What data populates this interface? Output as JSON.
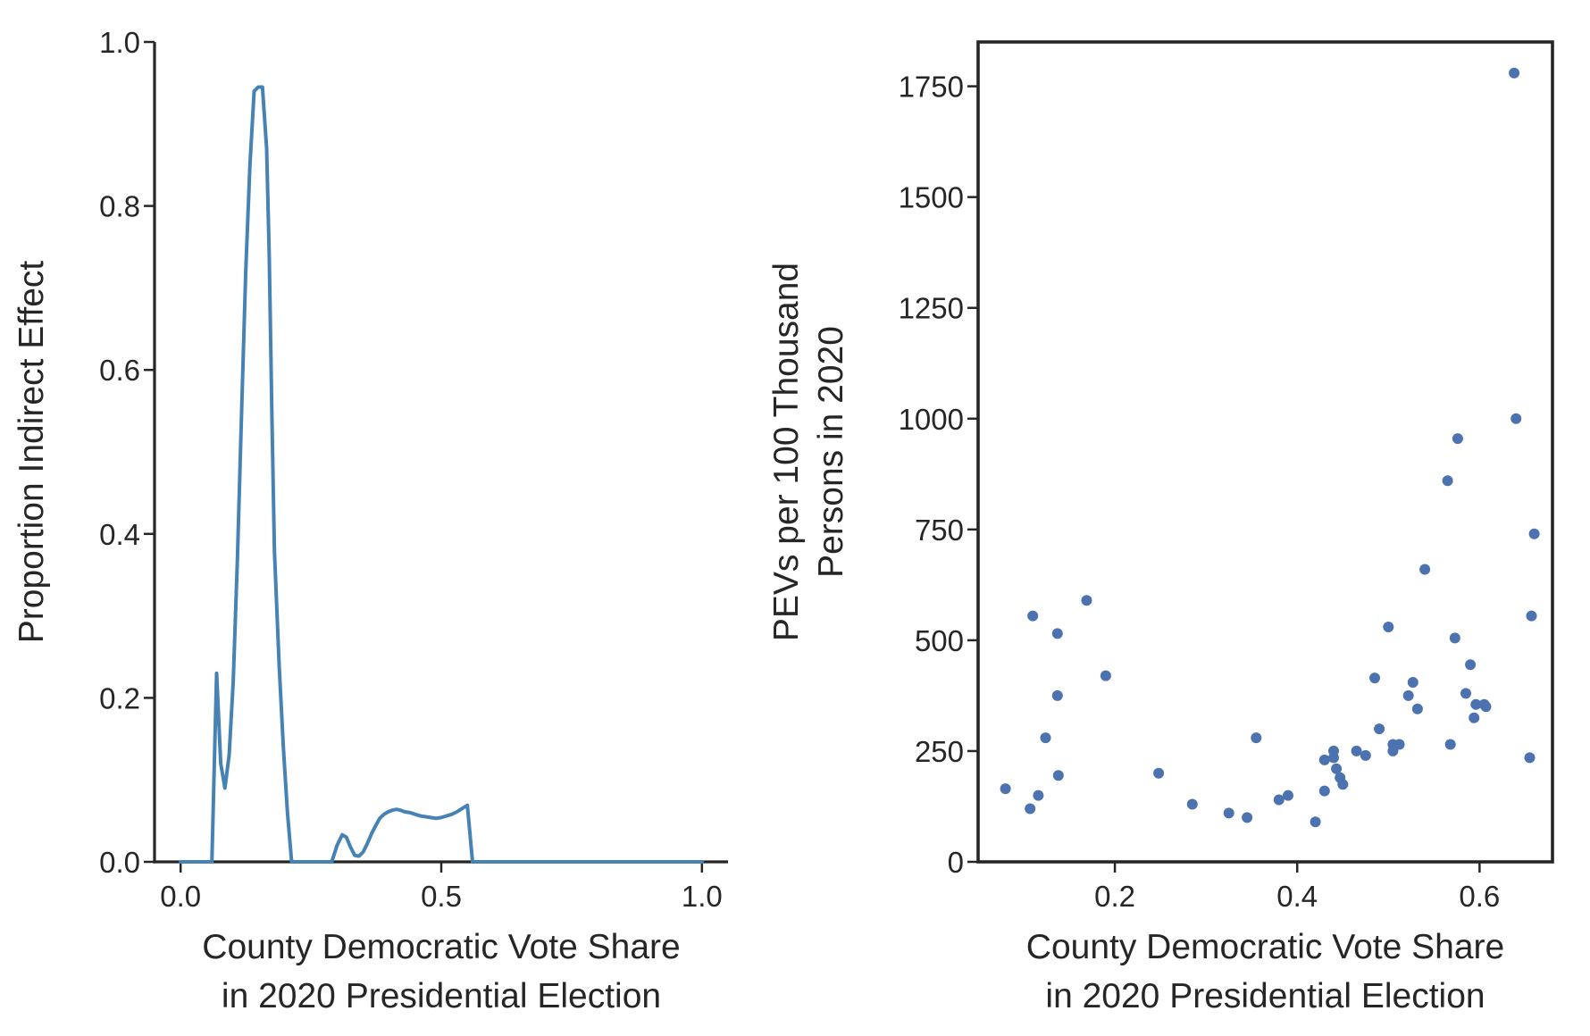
{
  "chart_data": [
    {
      "type": "line",
      "xlabel": [
        "County Democratic Vote Share",
        "in 2020 Presidential Election"
      ],
      "ylabel": "Proportion Indirect Effect",
      "xlim": [
        -0.05,
        1.05
      ],
      "ylim": [
        0.0,
        1.0
      ],
      "xticks": [
        0.0,
        0.5,
        1.0
      ],
      "xtick_labels": [
        "0.0",
        "0.5",
        "1.0"
      ],
      "yticks": [
        0.0,
        0.2,
        0.4,
        0.6,
        0.8,
        1.0
      ],
      "ytick_labels": [
        "0.0",
        "0.2",
        "0.4",
        "0.6",
        "0.8",
        "1.0"
      ],
      "grid": false,
      "spines": "left-bottom",
      "color": "#4682b4",
      "x": [
        0.0,
        0.06,
        0.069,
        0.077,
        0.085,
        0.093,
        0.101,
        0.109,
        0.117,
        0.125,
        0.133,
        0.141,
        0.149,
        0.157,
        0.165,
        0.17,
        0.175,
        0.18,
        0.189,
        0.197,
        0.205,
        0.213,
        0.221,
        0.229,
        0.237,
        0.245,
        0.29,
        0.3,
        0.31,
        0.318,
        0.326,
        0.334,
        0.342,
        0.35,
        0.358,
        0.366,
        0.374,
        0.382,
        0.39,
        0.398,
        0.406,
        0.414,
        0.422,
        0.43,
        0.44,
        0.45,
        0.46,
        0.47,
        0.48,
        0.49,
        0.5,
        0.51,
        0.52,
        0.53,
        0.54,
        0.55,
        0.56,
        0.57,
        0.58,
        0.59,
        0.6,
        0.61,
        0.62,
        0.63,
        0.64,
        1.0
      ],
      "y": [
        0.0,
        0.0,
        0.23,
        0.12,
        0.09,
        0.13,
        0.22,
        0.37,
        0.55,
        0.72,
        0.85,
        0.94,
        0.945,
        0.945,
        0.87,
        0.74,
        0.55,
        0.38,
        0.24,
        0.14,
        0.06,
        0.0,
        0.0,
        0.0,
        0.0,
        0.0,
        0.0,
        0.02,
        0.033,
        0.03,
        0.018,
        0.008,
        0.007,
        0.012,
        0.022,
        0.034,
        0.044,
        0.053,
        0.058,
        0.061,
        0.063,
        0.064,
        0.063,
        0.061,
        0.06,
        0.058,
        0.056,
        0.055,
        0.054,
        0.053,
        0.054,
        0.056,
        0.058,
        0.061,
        0.065,
        0.069,
        0.0,
        0.0,
        0.0,
        0.0,
        0.0,
        0.0,
        0.0,
        0.0,
        0.0,
        0.0
      ]
    },
    {
      "type": "scatter",
      "xlabel": [
        "County Democratic Vote Share",
        "in 2020 Presidential Election"
      ],
      "ylabel": [
        "PEVs per 100 Thousand",
        "Persons in 2020"
      ],
      "xlim": [
        0.05,
        0.68
      ],
      "ylim": [
        0,
        1850
      ],
      "xticks": [
        0.2,
        0.4,
        0.6
      ],
      "xtick_labels": [
        "0.2",
        "0.4",
        "0.6"
      ],
      "yticks": [
        0,
        250,
        500,
        750,
        1000,
        1250,
        1500,
        1750
      ],
      "ytick_labels": [
        "0",
        "250",
        "500",
        "750",
        "1000",
        "1250",
        "1500",
        "1750"
      ],
      "grid": false,
      "spines": "all",
      "color": "#4c72b0",
      "x": [
        0.08,
        0.107,
        0.11,
        0.116,
        0.124,
        0.137,
        0.137,
        0.138,
        0.169,
        0.19,
        0.248,
        0.285,
        0.325,
        0.345,
        0.355,
        0.38,
        0.39,
        0.42,
        0.43,
        0.43,
        0.44,
        0.44,
        0.443,
        0.447,
        0.45,
        0.465,
        0.475,
        0.485,
        0.49,
        0.5,
        0.505,
        0.505,
        0.512,
        0.522,
        0.527,
        0.532,
        0.54,
        0.565,
        0.568,
        0.573,
        0.576,
        0.585,
        0.59,
        0.594,
        0.596,
        0.605,
        0.607,
        0.638,
        0.64,
        0.655,
        0.657,
        0.66
      ],
      "y": [
        165,
        120,
        555,
        150,
        280,
        515,
        375,
        195,
        590,
        420,
        200,
        130,
        110,
        100,
        280,
        140,
        150,
        90,
        230,
        160,
        235,
        250,
        210,
        190,
        175,
        250,
        240,
        415,
        300,
        530,
        250,
        265,
        265,
        375,
        405,
        345,
        660,
        860,
        265,
        505,
        955,
        380,
        445,
        325,
        355,
        355,
        350,
        1780,
        1000,
        235,
        555,
        740
      ]
    }
  ]
}
